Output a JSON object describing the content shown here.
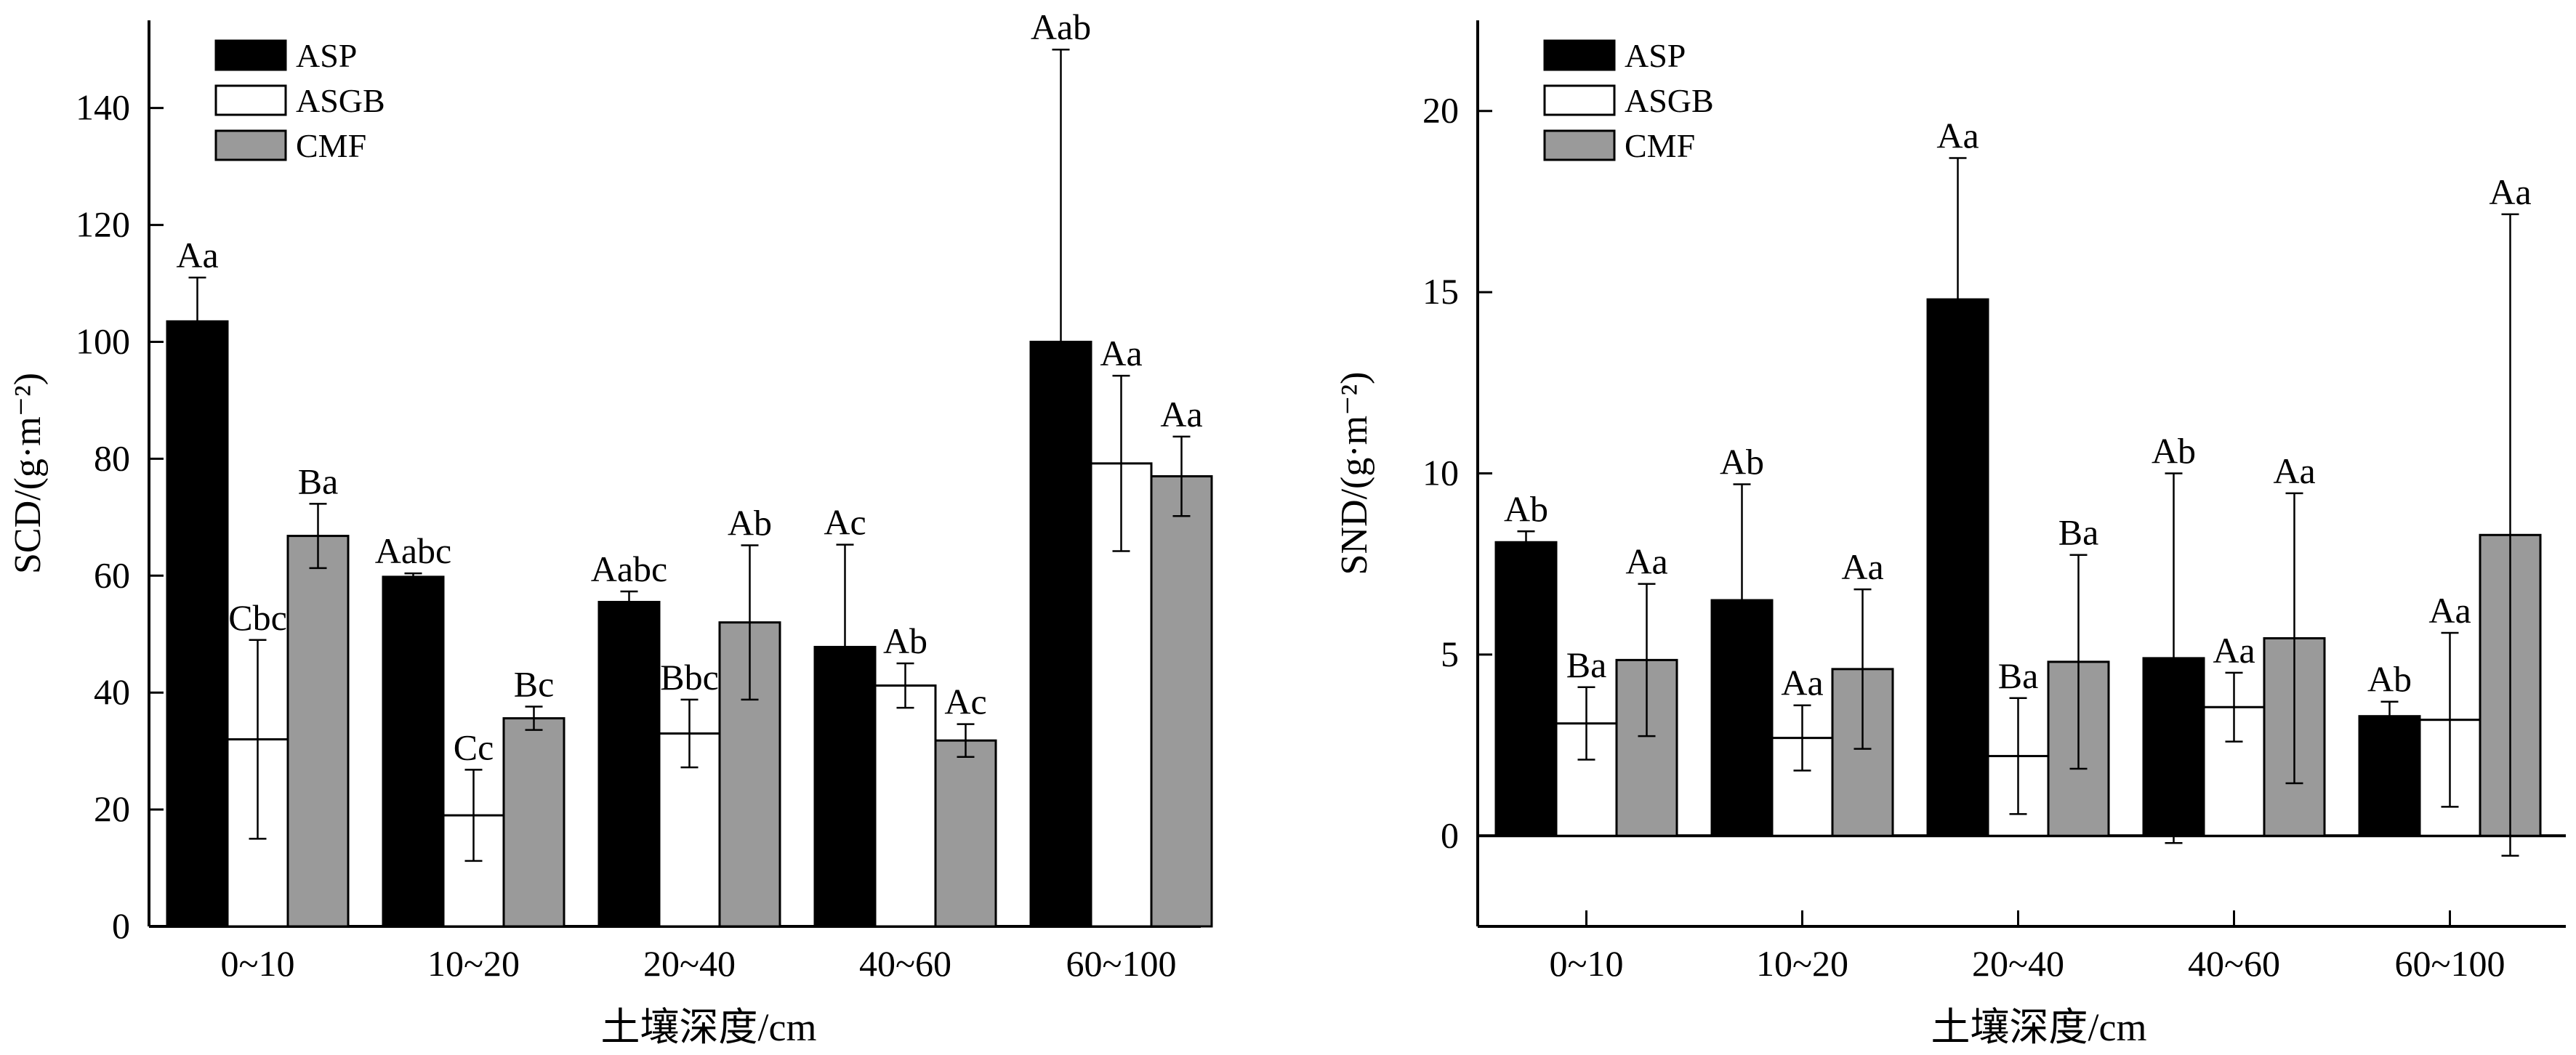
{
  "colors": {
    "ASP": "#000000",
    "ASGB": "#ffffff",
    "CMF": "#9a9a9a",
    "axis": "#000000"
  },
  "chart_data": [
    {
      "type": "bar",
      "title": "",
      "xlabel": "土壤深度/cm",
      "ylabel": "SCD/(g·m⁻²)",
      "ylim": [
        0,
        155
      ],
      "yticks": [
        0,
        20,
        40,
        60,
        80,
        100,
        120,
        140
      ],
      "grid": false,
      "legend": "top-left",
      "categories": [
        "0~10",
        "10~20",
        "20~40",
        "40~60",
        "60~100"
      ],
      "series": [
        {
          "name": "ASP",
          "values": [
            103.5,
            59.8,
            55.5,
            47.8,
            100.0
          ],
          "errors": [
            7.5,
            0.6,
            1.8,
            17.5,
            50.0
          ],
          "labels": [
            "Aa",
            "Aabc",
            "Aabc",
            "Ac",
            "Aab"
          ]
        },
        {
          "name": "ASGB",
          "values": [
            32.0,
            19.0,
            33.0,
            41.2,
            79.2
          ],
          "errors": [
            17.0,
            7.8,
            5.8,
            3.8,
            15.0
          ],
          "labels": [
            "Cbc",
            "Cc",
            "Bbc",
            "Ab",
            "Aa"
          ]
        },
        {
          "name": "CMF",
          "values": [
            66.8,
            35.6,
            52.0,
            31.8,
            77.0
          ],
          "errors": [
            5.5,
            2.0,
            13.2,
            2.8,
            6.8
          ],
          "labels": [
            "Ba",
            "Bc",
            "Ab",
            "Ac",
            "Aa"
          ]
        }
      ]
    },
    {
      "type": "bar",
      "title": "",
      "xlabel": "土壤深度/cm",
      "ylabel": "SND/(g·m⁻²)",
      "ylim": [
        -2.5,
        22.5
      ],
      "yticks": [
        0,
        5,
        10,
        15,
        20
      ],
      "grid": false,
      "legend": "top-left",
      "categories": [
        "0~10",
        "10~20",
        "20~40",
        "40~60",
        "60~100"
      ],
      "series": [
        {
          "name": "ASP",
          "values": [
            8.1,
            6.5,
            14.8,
            4.9,
            3.3
          ],
          "errors": [
            0.3,
            3.2,
            3.9,
            5.1,
            0.4
          ],
          "labels": [
            "Ab",
            "Ab",
            "Aa",
            "Ab",
            "Ab"
          ]
        },
        {
          "name": "ASGB",
          "values": [
            3.1,
            2.7,
            2.2,
            3.55,
            3.2
          ],
          "errors": [
            1.0,
            0.9,
            1.6,
            0.95,
            2.4
          ],
          "labels": [
            "Ba",
            "Aa",
            "Ba",
            "Aa",
            "Aa"
          ]
        },
        {
          "name": "CMF",
          "values": [
            4.85,
            4.6,
            4.8,
            5.45,
            8.3
          ],
          "errors": [
            2.1,
            2.2,
            2.95,
            4.0,
            8.85
          ],
          "labels": [
            "Aa",
            "Aa",
            "Ba",
            "Aa",
            "Aa"
          ]
        }
      ]
    }
  ]
}
